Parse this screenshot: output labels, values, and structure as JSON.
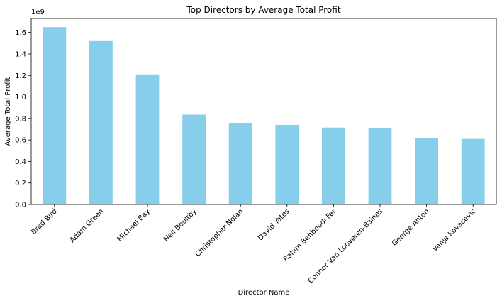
{
  "chart_data": {
    "type": "bar",
    "title": "Top Directors by Average Total Profit",
    "xlabel": "Director Name",
    "ylabel": "Average Total Profit",
    "y_scale_label": "1e9",
    "categories": [
      "Brad Bird",
      "Adam Green",
      "Michael Bay",
      "Neil Boultby",
      "Christopher Nolan",
      "David Yates",
      "Rahim Behboodi Far",
      "Connor Van Looveren-Baines",
      "George Anton",
      "Vanja Kovacevic"
    ],
    "values": [
      1650000000,
      1520000000,
      1210000000,
      835000000,
      760000000,
      740000000,
      715000000,
      710000000,
      620000000,
      610000000
    ],
    "ylim": [
      0,
      1730000000
    ],
    "yticks": [
      0,
      200000000,
      400000000,
      600000000,
      800000000,
      1000000000,
      1200000000,
      1400000000,
      1600000000
    ],
    "ytick_labels": [
      "0.0",
      "0.2",
      "0.4",
      "0.6",
      "0.8",
      "1.0",
      "1.2",
      "1.4",
      "1.6"
    ],
    "bar_color": "#87ceeb",
    "grid": false,
    "legend": "none"
  }
}
